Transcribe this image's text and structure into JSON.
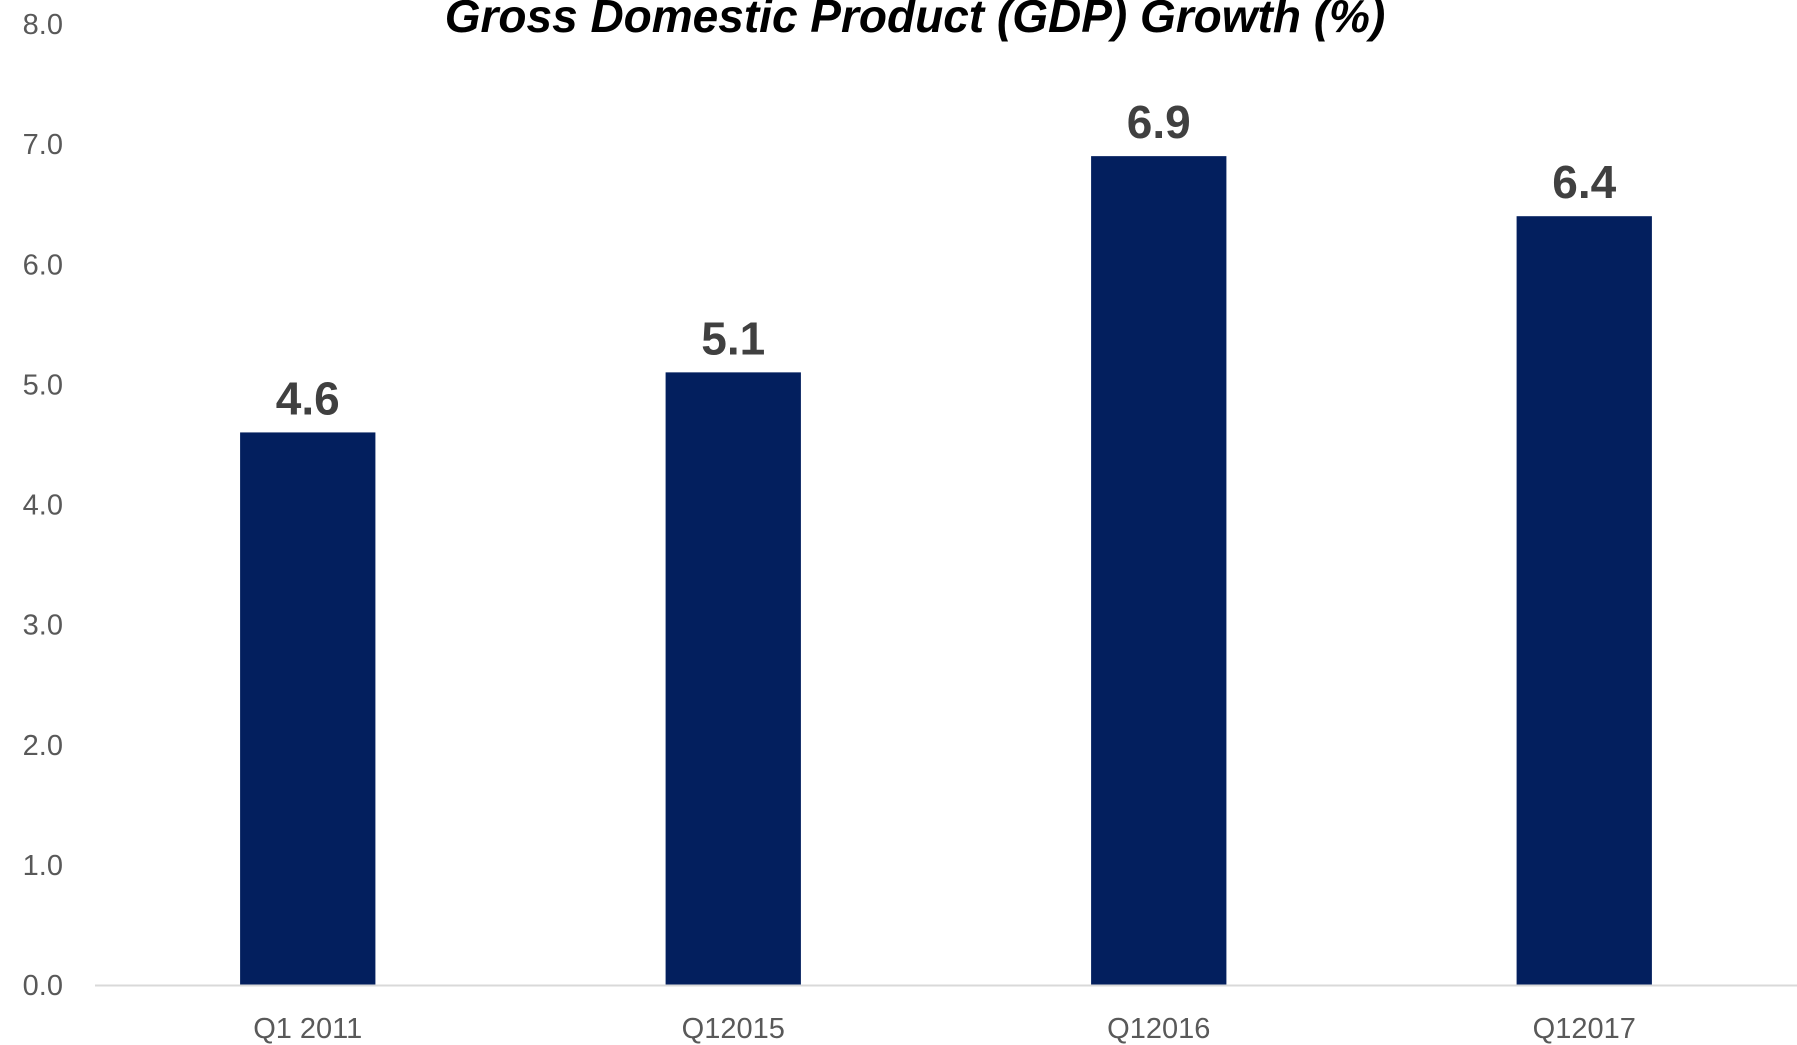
{
  "chart_data": {
    "type": "bar",
    "title": "Gross Domestic Product (GDP) Growth (%)",
    "xlabel": "",
    "ylabel": "",
    "categories": [
      "Q1 2011",
      "Q12015",
      "Q12016",
      "Q12017"
    ],
    "values": [
      4.6,
      5.1,
      6.9,
      6.4
    ],
    "data_labels": [
      "4.6",
      "5.1",
      "6.9",
      "6.4"
    ],
    "ylim": [
      0,
      8
    ],
    "y_ticks": [
      "0.0",
      "1.0",
      "2.0",
      "3.0",
      "4.0",
      "5.0",
      "6.0",
      "7.0",
      "8.0"
    ],
    "grid": false,
    "legend": "none",
    "colors": {
      "bar": "#031F5E",
      "axis_line": "#D9D9D9",
      "tick_text": "#595959",
      "data_label_text": "#404040",
      "title_text": "#000000"
    }
  }
}
